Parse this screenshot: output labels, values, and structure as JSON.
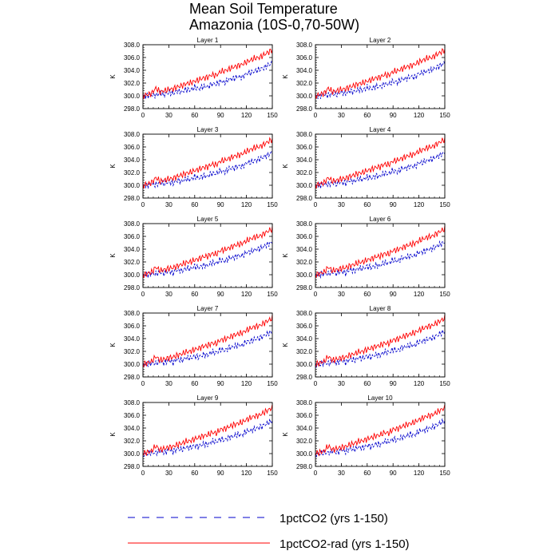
{
  "title_lines": [
    "Mean Soil Temperature",
    "Amazonia (10S-0,70-50W)"
  ],
  "legend": [
    {
      "label": "1pctCO2 (yrs 1-150)",
      "color": "#0000cc",
      "dash": true
    },
    {
      "label": "1pctCO2-rad (yrs 1-150)",
      "color": "#ff0000",
      "dash": false
    }
  ],
  "chart_data": {
    "type": "line",
    "panel_titles": [
      "Layer 1",
      "Layer 2",
      "Layer 3",
      "Layer 4",
      "Layer 5",
      "Layer 6",
      "Layer 7",
      "Layer 8",
      "Layer 9",
      "Layer 10"
    ],
    "ylabel": "K",
    "xlim": [
      0,
      150
    ],
    "ylim": [
      298.0,
      308.0
    ],
    "xticks": [
      "0",
      "30",
      "60",
      "90",
      "120",
      "150"
    ],
    "yticks": [
      "298.0",
      "300.0",
      "302.0",
      "304.0",
      "306.0",
      "308.0"
    ],
    "series": [
      {
        "name": "1pctCO2 (yrs 1-150)",
        "color": "#0000cc",
        "x": [
          0,
          5,
          10,
          15,
          20,
          25,
          30,
          35,
          40,
          45,
          50,
          55,
          60,
          65,
          70,
          75,
          80,
          85,
          90,
          95,
          100,
          105,
          110,
          115,
          120,
          125,
          130,
          135,
          140,
          145,
          150
        ],
        "values": [
          299.9,
          300.0,
          300.2,
          300.1,
          300.4,
          300.2,
          300.6,
          300.3,
          300.8,
          300.6,
          301.0,
          300.9,
          301.3,
          301.1,
          301.5,
          301.4,
          301.9,
          301.8,
          302.3,
          302.1,
          302.6,
          302.7,
          303.0,
          302.9,
          303.5,
          303.6,
          303.9,
          304.1,
          304.4,
          304.8,
          305.1
        ]
      },
      {
        "name": "1pctCO2-rad (yrs 1-150)",
        "color": "#ff0000",
        "x": [
          0,
          5,
          10,
          15,
          20,
          25,
          30,
          35,
          40,
          45,
          50,
          55,
          60,
          65,
          70,
          75,
          80,
          85,
          90,
          95,
          100,
          105,
          110,
          115,
          120,
          125,
          130,
          135,
          140,
          145,
          150
        ],
        "values": [
          300.0,
          300.2,
          300.4,
          301.2,
          300.6,
          300.8,
          301.0,
          301.1,
          301.4,
          301.6,
          301.9,
          302.0,
          302.3,
          302.5,
          302.8,
          302.9,
          303.3,
          303.2,
          303.8,
          303.9,
          304.2,
          304.5,
          304.7,
          304.9,
          305.3,
          305.6,
          305.9,
          306.0,
          306.4,
          306.8,
          307.2
        ]
      }
    ]
  }
}
